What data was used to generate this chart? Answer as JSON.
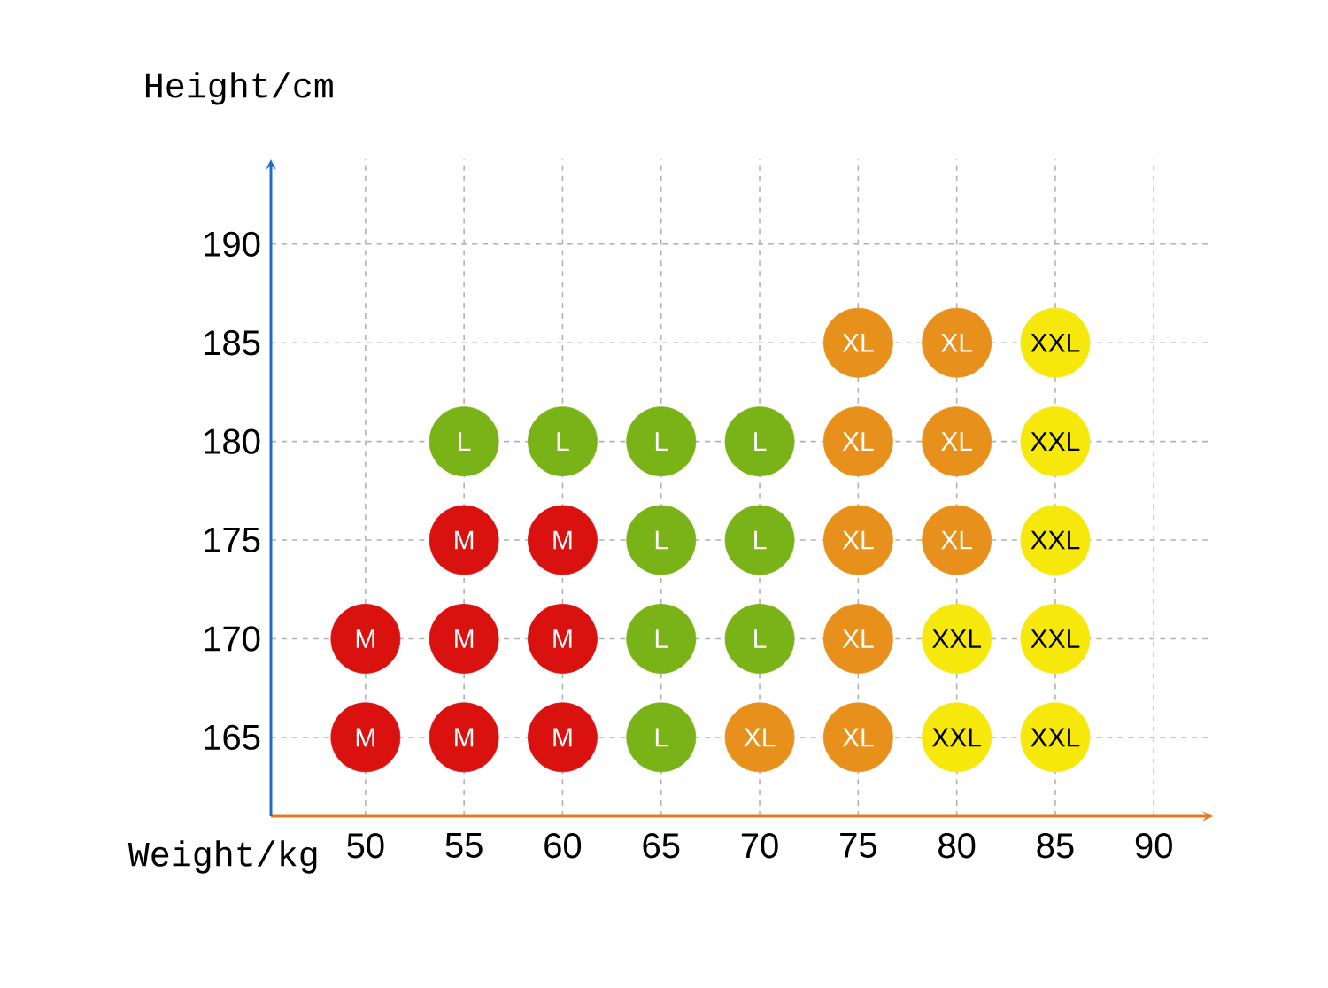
{
  "chart_data": {
    "type": "scatter",
    "xlabel": "Weight/kg",
    "ylabel": "Height/cm",
    "xlim": [
      45.2,
      93
    ],
    "ylim": [
      161,
      194.3
    ],
    "xticks": [
      50,
      55,
      60,
      65,
      70,
      75,
      80,
      85,
      90
    ],
    "yticks": [
      165,
      170,
      175,
      180,
      185,
      190
    ],
    "grid": true,
    "marker": "circle",
    "series": [
      {
        "color": "#d9120f",
        "x": [
          50,
          55,
          60,
          50,
          55,
          60,
          55,
          60
        ],
        "values": [
          165,
          165,
          165,
          170,
          170,
          170,
          175,
          175
        ],
        "value_labels": [
          "M",
          "M",
          "M",
          "M",
          "M",
          "M",
          "M",
          "M"
        ]
      },
      {
        "color": "#7ab317",
        "x": [
          55,
          60,
          65,
          70,
          65,
          70,
          65,
          70,
          65
        ],
        "values": [
          180,
          180,
          180,
          180,
          175,
          175,
          170,
          170,
          165
        ],
        "value_labels": [
          "L",
          "L",
          "L",
          "L",
          "L",
          "L",
          "L",
          "L",
          "L"
        ]
      },
      {
        "color": "#e8901c",
        "x": [
          75,
          80,
          75,
          80,
          75,
          80,
          75,
          70,
          75
        ],
        "values": [
          185,
          185,
          180,
          180,
          175,
          175,
          170,
          165,
          165
        ],
        "value_labels": [
          "XL",
          "XL",
          "XL",
          "XL",
          "XL",
          "XL",
          "XL",
          "XL",
          "XL"
        ]
      },
      {
        "color": "#f5e80a",
        "x": [
          85,
          85,
          85,
          80,
          85,
          80,
          85
        ],
        "values": [
          185,
          180,
          175,
          170,
          170,
          165,
          165
        ],
        "value_labels": [
          "XXL",
          "XXL",
          "XXL",
          "XXL",
          "XXL",
          "XXL",
          "XXL"
        ]
      }
    ]
  }
}
